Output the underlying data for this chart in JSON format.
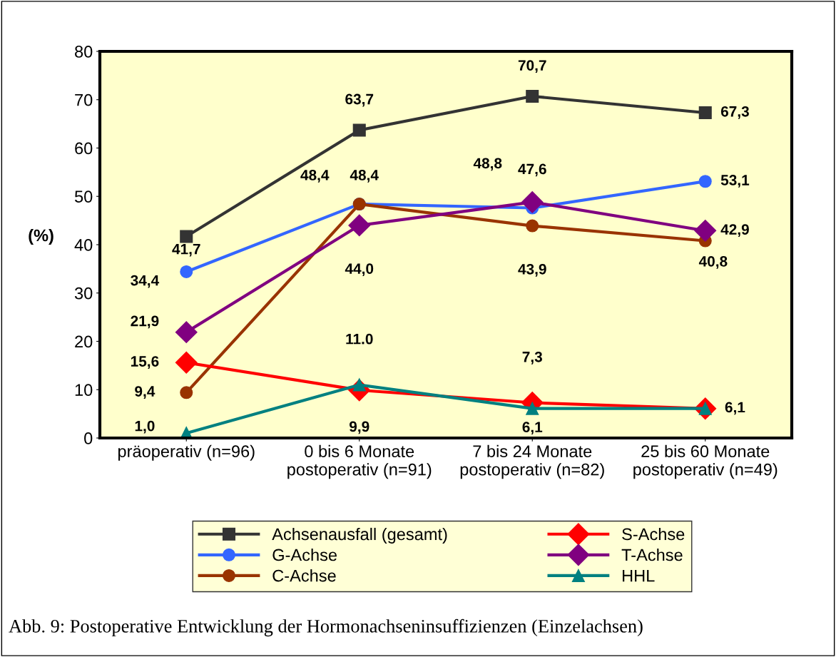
{
  "chart_data": {
    "type": "line",
    "ylabel": "(%)",
    "categories": [
      "präoperativ (n=96)",
      "0 bis 6 Monate\npostoperativ (n=91)",
      "7 bis 24 Monate\npostoperativ (n=82)",
      "25 bis 60 Monate\npostoperativ (n=49)"
    ],
    "ylim": [
      0,
      80
    ],
    "yticks": [
      0,
      10,
      20,
      30,
      40,
      50,
      60,
      70,
      80
    ],
    "grid": false,
    "legend": "bottom",
    "line_style": "solid",
    "series": [
      {
        "name": "Achsenausfall (gesamt)",
        "color": "#333333",
        "marker": "square",
        "values": [
          41.7,
          63.7,
          70.7,
          67.3
        ],
        "value_labels": [
          "41,7",
          "63,7",
          "70,7",
          "67,3"
        ]
      },
      {
        "name": "G-Achse",
        "color": "#3366ff",
        "marker": "circle",
        "values": [
          34.4,
          48.4,
          47.6,
          53.1
        ],
        "value_labels": [
          "34,4",
          "48,4",
          "47,6",
          "53,1"
        ]
      },
      {
        "name": "C-Achse",
        "color": "#993300",
        "marker": "circle",
        "values": [
          9.4,
          48.4,
          43.9,
          40.8
        ],
        "value_labels": [
          "9,4",
          "48,4",
          "43,9",
          "40,8"
        ]
      },
      {
        "name": "S-Achse",
        "color": "#ff0000",
        "marker": "diamond",
        "values": [
          15.6,
          9.9,
          7.3,
          6.1
        ],
        "value_labels": [
          "15,6",
          "9,9",
          "7,3",
          null
        ]
      },
      {
        "name": "T-Achse",
        "color": "#800080",
        "marker": "diamond",
        "values": [
          21.9,
          44.0,
          48.8,
          42.9
        ],
        "value_labels": [
          "21,9",
          "44,0",
          "48,8",
          "42,9"
        ]
      },
      {
        "name": "HHL",
        "color": "#008080",
        "marker": "triangle",
        "values": [
          1.0,
          11.0,
          6.1,
          6.1
        ],
        "value_labels": [
          "1,0",
          "11.0",
          "6,1",
          "6,1"
        ]
      }
    ],
    "annotations": [
      "Abb. 9: Postoperative Entwicklung der Hormonachseninsuffizienzen (Einzelachsen)"
    ]
  }
}
